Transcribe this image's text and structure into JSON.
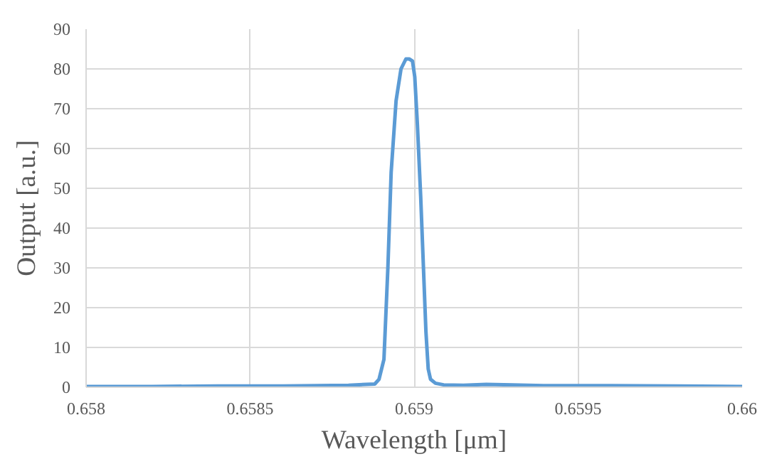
{
  "chart_data": {
    "type": "line",
    "xlabel": "Wavelength [μm]",
    "ylabel": "Output [a.u.]",
    "x": [
      0.658,
      0.6582,
      0.6584,
      0.6586,
      0.6588,
      0.65888,
      0.658893,
      0.658908,
      0.65892,
      0.65893,
      0.658945,
      0.65896,
      0.658975,
      0.658985,
      0.658995,
      0.659002,
      0.65901,
      0.65902,
      0.659028,
      0.659036,
      0.659043,
      0.65905,
      0.659065,
      0.65909,
      0.65915,
      0.65922,
      0.6593,
      0.6594,
      0.6596,
      0.6598,
      0.66
    ],
    "series": [
      {
        "color": "#5b9bd5",
        "values": [
          0.2,
          0.2,
          0.3,
          0.3,
          0.5,
          0.8,
          2,
          7,
          30,
          54,
          72,
          80,
          82.5,
          82.5,
          82,
          78,
          66,
          48,
          31,
          14,
          4.6,
          2,
          1,
          0.6,
          0.5,
          0.7,
          0.6,
          0.4,
          0.4,
          0.3,
          0.2
        ]
      }
    ],
    "xlim": [
      0.658,
      0.66
    ],
    "xticks": [
      0.658,
      0.6585,
      0.659,
      0.6595,
      0.66
    ],
    "ylim": [
      0,
      90
    ],
    "yticks": [
      0,
      10,
      20,
      30,
      40,
      50,
      60,
      70,
      80,
      90
    ],
    "grid": true
  }
}
